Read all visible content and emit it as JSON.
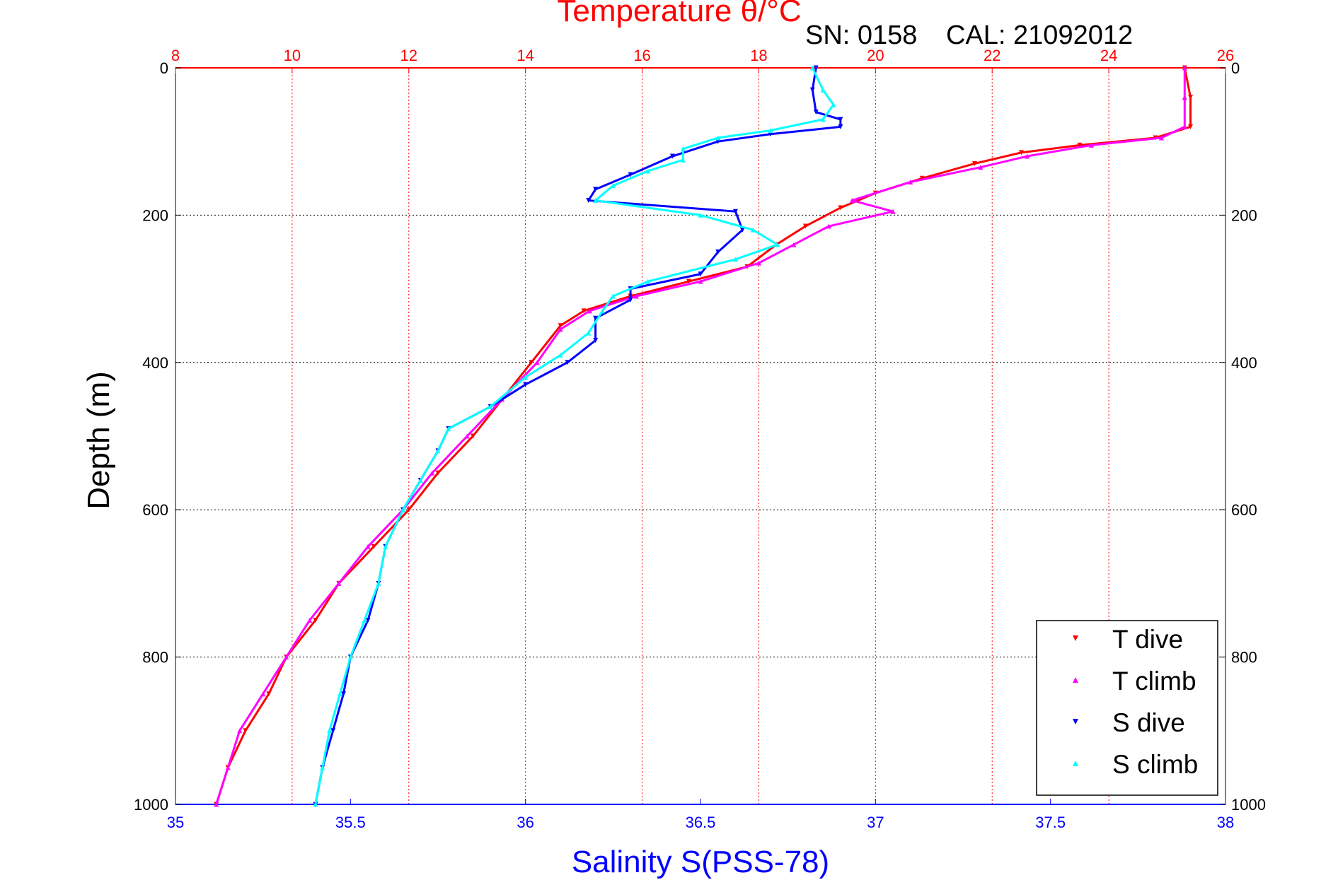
{
  "chart_data": {
    "type": "scatter",
    "top_axis": {
      "label": "Temperature θ/°C",
      "ticks": [
        "8",
        "10",
        "12",
        "14",
        "16",
        "18",
        "20",
        "22",
        "24",
        "26"
      ],
      "range": [
        8,
        26
      ],
      "color": "#ff0000"
    },
    "bottom_axis": {
      "label": "Salinity S(PSS-78)",
      "ticks": [
        "35",
        "35.5",
        "36",
        "36.5",
        "37",
        "37.5",
        "38"
      ],
      "range": [
        35,
        38
      ],
      "color": "#0000ff"
    },
    "y_axis": {
      "label": "Depth (m)",
      "ticks": [
        "0",
        "200",
        "400",
        "600",
        "800",
        "1000"
      ],
      "range": [
        0,
        1000
      ],
      "reversed": true
    },
    "annotation": {
      "sn": "SN: 0158",
      "cal": "CAL: 21092012"
    },
    "grid": true,
    "legend_position": "bottom-right",
    "series": [
      {
        "name": "T dive",
        "color": "#ff0000",
        "marker": "down-triangle",
        "axis": "temperature",
        "points": [
          [
            25.3,
            0
          ],
          [
            25.4,
            40
          ],
          [
            25.4,
            80
          ],
          [
            24.8,
            95
          ],
          [
            23.5,
            105
          ],
          [
            22.5,
            115
          ],
          [
            21.7,
            130
          ],
          [
            20.8,
            150
          ],
          [
            20.0,
            170
          ],
          [
            19.4,
            190
          ],
          [
            18.8,
            215
          ],
          [
            18.3,
            240
          ],
          [
            17.8,
            270
          ],
          [
            16.8,
            290
          ],
          [
            15.8,
            310
          ],
          [
            15.0,
            330
          ],
          [
            14.6,
            350
          ],
          [
            14.1,
            400
          ],
          [
            13.6,
            450
          ],
          [
            13.1,
            500
          ],
          [
            12.5,
            550
          ],
          [
            12.0,
            600
          ],
          [
            11.4,
            650
          ],
          [
            10.8,
            700
          ],
          [
            10.4,
            750
          ],
          [
            9.9,
            800
          ],
          [
            9.6,
            850
          ],
          [
            9.2,
            900
          ],
          [
            8.9,
            950
          ],
          [
            8.7,
            1000
          ]
        ]
      },
      {
        "name": "T climb",
        "color": "#ff00ff",
        "marker": "up-triangle",
        "axis": "temperature",
        "points": [
          [
            25.3,
            0
          ],
          [
            25.3,
            40
          ],
          [
            25.3,
            80
          ],
          [
            24.9,
            95
          ],
          [
            23.7,
            105
          ],
          [
            22.6,
            120
          ],
          [
            21.8,
            135
          ],
          [
            20.6,
            155
          ],
          [
            19.6,
            180
          ],
          [
            20.3,
            195
          ],
          [
            19.2,
            215
          ],
          [
            18.6,
            240
          ],
          [
            18.0,
            265
          ],
          [
            17.0,
            290
          ],
          [
            15.9,
            310
          ],
          [
            15.1,
            330
          ],
          [
            14.6,
            355
          ],
          [
            14.2,
            400
          ],
          [
            13.6,
            450
          ],
          [
            13.0,
            500
          ],
          [
            12.4,
            550
          ],
          [
            11.9,
            600
          ],
          [
            11.3,
            650
          ],
          [
            10.8,
            700
          ],
          [
            10.3,
            750
          ],
          [
            9.9,
            800
          ],
          [
            9.5,
            850
          ],
          [
            9.1,
            900
          ],
          [
            8.9,
            950
          ],
          [
            8.7,
            1000
          ]
        ]
      },
      {
        "name": "S dive",
        "color": "#0000ff",
        "marker": "down-triangle",
        "axis": "salinity",
        "points": [
          [
            36.83,
            0
          ],
          [
            36.82,
            30
          ],
          [
            36.83,
            60
          ],
          [
            36.9,
            70
          ],
          [
            36.9,
            80
          ],
          [
            36.7,
            90
          ],
          [
            36.55,
            100
          ],
          [
            36.42,
            120
          ],
          [
            36.3,
            145
          ],
          [
            36.2,
            165
          ],
          [
            36.18,
            180
          ],
          [
            36.6,
            195
          ],
          [
            36.62,
            220
          ],
          [
            36.55,
            250
          ],
          [
            36.5,
            280
          ],
          [
            36.3,
            300
          ],
          [
            36.3,
            315
          ],
          [
            36.2,
            340
          ],
          [
            36.2,
            370
          ],
          [
            36.12,
            400
          ],
          [
            36.0,
            430
          ],
          [
            35.9,
            460
          ],
          [
            35.78,
            490
          ],
          [
            35.75,
            520
          ],
          [
            35.7,
            560
          ],
          [
            35.65,
            600
          ],
          [
            35.6,
            650
          ],
          [
            35.58,
            700
          ],
          [
            35.55,
            750
          ],
          [
            35.5,
            800
          ],
          [
            35.48,
            850
          ],
          [
            35.45,
            900
          ],
          [
            35.42,
            950
          ],
          [
            35.4,
            1000
          ]
        ]
      },
      {
        "name": "S climb",
        "color": "#00ffff",
        "marker": "up-triangle",
        "axis": "salinity",
        "points": [
          [
            36.82,
            0
          ],
          [
            36.85,
            30
          ],
          [
            36.88,
            50
          ],
          [
            36.85,
            70
          ],
          [
            36.7,
            85
          ],
          [
            36.55,
            95
          ],
          [
            36.45,
            110
          ],
          [
            36.45,
            125
          ],
          [
            36.35,
            140
          ],
          [
            36.25,
            160
          ],
          [
            36.2,
            180
          ],
          [
            36.5,
            200
          ],
          [
            36.65,
            220
          ],
          [
            36.72,
            240
          ],
          [
            36.6,
            260
          ],
          [
            36.35,
            290
          ],
          [
            36.25,
            310
          ],
          [
            36.22,
            330
          ],
          [
            36.18,
            360
          ],
          [
            36.1,
            390
          ],
          [
            36.0,
            420
          ],
          [
            35.9,
            460
          ],
          [
            35.78,
            490
          ],
          [
            35.75,
            520
          ],
          [
            35.7,
            560
          ],
          [
            35.65,
            600
          ],
          [
            35.6,
            650
          ],
          [
            35.58,
            700
          ],
          [
            35.54,
            750
          ],
          [
            35.5,
            800
          ],
          [
            35.47,
            850
          ],
          [
            35.44,
            900
          ],
          [
            35.42,
            950
          ],
          [
            35.4,
            1000
          ]
        ]
      }
    ]
  }
}
